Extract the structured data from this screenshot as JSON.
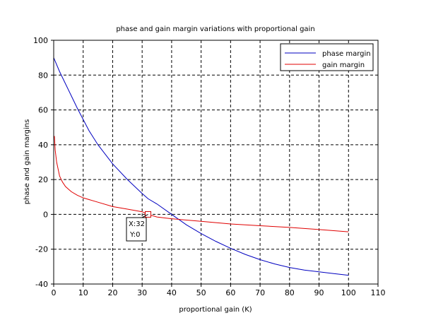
{
  "chart_data": {
    "type": "line",
    "title": "phase and gain margin variations with proportional gain",
    "xlabel": "proportional gain (K)",
    "ylabel": "phase and gain margins",
    "xlim": [
      0,
      110
    ],
    "ylim": [
      -40,
      100
    ],
    "x_ticks": [
      0,
      10,
      20,
      30,
      40,
      50,
      60,
      70,
      80,
      90,
      100,
      110
    ],
    "y_ticks": [
      -40,
      -20,
      0,
      20,
      40,
      60,
      80,
      100
    ],
    "grid": true,
    "legend_position": "top-right",
    "series": [
      {
        "name": "phase margin",
        "color": "#0000c0",
        "x": [
          0,
          2,
          4,
          6,
          8,
          10,
          12,
          15,
          20,
          25,
          30,
          32,
          35,
          40,
          45,
          50,
          55,
          60,
          65,
          70,
          75,
          80,
          85,
          90,
          95,
          100
        ],
        "y": [
          90,
          82,
          75,
          68,
          61,
          54.5,
          48,
          40,
          29,
          20,
          12,
          9,
          6,
          0,
          -6,
          -11,
          -15.5,
          -19.5,
          -23,
          -26,
          -28.5,
          -30.5,
          -32,
          -33,
          -34,
          -35
        ]
      },
      {
        "name": "gain margin",
        "color": "#e00000",
        "x": [
          0.25,
          0.5,
          1,
          2,
          3,
          4,
          5,
          6,
          8,
          10,
          15,
          20,
          25,
          30,
          32,
          35,
          40,
          50,
          60,
          70,
          80,
          90,
          100
        ],
        "y": [
          45,
          37,
          30,
          22,
          18.5,
          16,
          14.5,
          13,
          11,
          9.5,
          7,
          4.5,
          3,
          1.5,
          0,
          -1.5,
          -2.5,
          -4,
          -5.5,
          -6.5,
          -7.5,
          -8.7,
          -10
        ]
      }
    ],
    "annotation": {
      "x": 32,
      "y": 0,
      "x_text": "X:32",
      "y_text": "Y:0"
    }
  }
}
